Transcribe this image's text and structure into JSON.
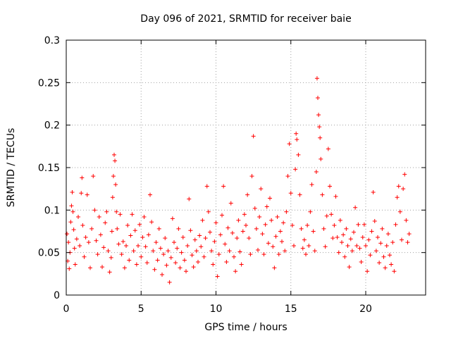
{
  "chart_data": {
    "type": "scatter",
    "title": "Day 096 of 2021, SRMTID for receiver baie",
    "xlabel": "GPS time / hours",
    "ylabel": "SRMTID / TECUs",
    "xlim": [
      0,
      24
    ],
    "ylim": [
      0,
      0.3
    ],
    "xticks": [
      0,
      5,
      10,
      15,
      20
    ],
    "xtick_labels": [
      "0",
      "5",
      "10",
      "15",
      "20"
    ],
    "yticks": [
      0,
      0.05,
      0.1,
      0.15,
      0.2,
      0.25,
      0.3
    ],
    "ytick_labels": [
      "0",
      "0.05",
      "0.1",
      "0.15",
      "0.2",
      "0.25",
      "0.3"
    ],
    "grid": true,
    "marker": "plus",
    "series": [
      {
        "name": "baie",
        "color": "#ff0000",
        "points": [
          [
            0.05,
            0.072
          ],
          [
            0.1,
            0.04
          ],
          [
            0.15,
            0.062
          ],
          [
            0.2,
            0.031
          ],
          [
            0.25,
            0.05
          ],
          [
            0.3,
            0.086
          ],
          [
            0.35,
            0.105
          ],
          [
            0.4,
            0.121
          ],
          [
            0.45,
            0.098
          ],
          [
            0.5,
            0.077
          ],
          [
            0.55,
            0.055
          ],
          [
            0.6,
            0.036
          ],
          [
            0.7,
            0.066
          ],
          [
            0.8,
            0.092
          ],
          [
            0.9,
            0.058
          ],
          [
            1.0,
            0.12
          ],
          [
            1.05,
            0.138
          ],
          [
            1.1,
            0.082
          ],
          [
            1.2,
            0.045
          ],
          [
            1.3,
            0.068
          ],
          [
            1.4,
            0.118
          ],
          [
            1.5,
            0.062
          ],
          [
            1.6,
            0.032
          ],
          [
            1.7,
            0.078
          ],
          [
            1.8,
            0.14
          ],
          [
            1.9,
            0.1
          ],
          [
            2.0,
            0.064
          ],
          [
            2.1,
            0.048
          ],
          [
            2.2,
            0.092
          ],
          [
            2.3,
            0.071
          ],
          [
            2.4,
            0.033
          ],
          [
            2.5,
            0.056
          ],
          [
            2.6,
            0.085
          ],
          [
            2.7,
            0.098
          ],
          [
            2.8,
            0.052
          ],
          [
            2.9,
            0.027
          ],
          [
            3.0,
            0.044
          ],
          [
            3.05,
            0.075
          ],
          [
            3.1,
            0.115
          ],
          [
            3.15,
            0.14
          ],
          [
            3.2,
            0.165
          ],
          [
            3.25,
            0.158
          ],
          [
            3.3,
            0.13
          ],
          [
            3.35,
            0.098
          ],
          [
            3.4,
            0.078
          ],
          [
            3.5,
            0.06
          ],
          [
            3.6,
            0.095
          ],
          [
            3.7,
            0.048
          ],
          [
            3.8,
            0.063
          ],
          [
            3.9,
            0.032
          ],
          [
            4.0,
            0.058
          ],
          [
            4.1,
            0.082
          ],
          [
            4.2,
            0.041
          ],
          [
            4.3,
            0.07
          ],
          [
            4.4,
            0.095
          ],
          [
            4.5,
            0.052
          ],
          [
            4.6,
            0.076
          ],
          [
            4.7,
            0.036
          ],
          [
            4.8,
            0.058
          ],
          [
            4.9,
            0.083
          ],
          [
            5.0,
            0.045
          ],
          [
            5.1,
            0.068
          ],
          [
            5.2,
            0.092
          ],
          [
            5.3,
            0.057
          ],
          [
            5.4,
            0.038
          ],
          [
            5.5,
            0.071
          ],
          [
            5.6,
            0.118
          ],
          [
            5.7,
            0.086
          ],
          [
            5.8,
            0.052
          ],
          [
            5.9,
            0.03
          ],
          [
            6.0,
            0.062
          ],
          [
            6.1,
            0.041
          ],
          [
            6.2,
            0.078
          ],
          [
            6.3,
            0.055
          ],
          [
            6.4,
            0.024
          ],
          [
            6.5,
            0.048
          ],
          [
            6.6,
            0.067
          ],
          [
            6.7,
            0.035
          ],
          [
            6.8,
            0.052
          ],
          [
            6.9,
            0.015
          ],
          [
            7.0,
            0.044
          ],
          [
            7.1,
            0.09
          ],
          [
            7.2,
            0.062
          ],
          [
            7.3,
            0.038
          ],
          [
            7.4,
            0.055
          ],
          [
            7.5,
            0.078
          ],
          [
            7.6,
            0.032
          ],
          [
            7.7,
            0.05
          ],
          [
            7.8,
            0.068
          ],
          [
            7.9,
            0.041
          ],
          [
            8.0,
            0.028
          ],
          [
            8.1,
            0.058
          ],
          [
            8.2,
            0.113
          ],
          [
            8.3,
            0.076
          ],
          [
            8.4,
            0.047
          ],
          [
            8.5,
            0.033
          ],
          [
            8.6,
            0.065
          ],
          [
            8.7,
            0.052
          ],
          [
            8.8,
            0.039
          ],
          [
            8.9,
            0.07
          ],
          [
            9.0,
            0.057
          ],
          [
            9.1,
            0.088
          ],
          [
            9.2,
            0.045
          ],
          [
            9.3,
            0.067
          ],
          [
            9.4,
            0.128
          ],
          [
            9.5,
            0.098
          ],
          [
            9.6,
            0.074
          ],
          [
            9.7,
            0.052
          ],
          [
            9.8,
            0.036
          ],
          [
            9.9,
            0.063
          ],
          [
            10.0,
            0.085
          ],
          [
            10.1,
            0.022
          ],
          [
            10.2,
            0.048
          ],
          [
            10.3,
            0.071
          ],
          [
            10.4,
            0.094
          ],
          [
            10.5,
            0.128
          ],
          [
            10.6,
            0.06
          ],
          [
            10.7,
            0.039
          ],
          [
            10.8,
            0.079
          ],
          [
            10.9,
            0.052
          ],
          [
            11.0,
            0.108
          ],
          [
            11.1,
            0.073
          ],
          [
            11.2,
            0.045
          ],
          [
            11.3,
            0.028
          ],
          [
            11.4,
            0.067
          ],
          [
            11.5,
            0.088
          ],
          [
            11.6,
            0.051
          ],
          [
            11.7,
            0.036
          ],
          [
            11.8,
            0.075
          ],
          [
            11.9,
            0.095
          ],
          [
            12.0,
            0.082
          ],
          [
            12.1,
            0.118
          ],
          [
            12.2,
            0.067
          ],
          [
            12.3,
            0.048
          ],
          [
            12.4,
            0.14
          ],
          [
            12.5,
            0.187
          ],
          [
            12.6,
            0.102
          ],
          [
            12.7,
            0.078
          ],
          [
            12.8,
            0.053
          ],
          [
            12.9,
            0.092
          ],
          [
            13.0,
            0.125
          ],
          [
            13.1,
            0.072
          ],
          [
            13.2,
            0.048
          ],
          [
            13.3,
            0.083
          ],
          [
            13.4,
            0.104
          ],
          [
            13.5,
            0.061
          ],
          [
            13.6,
            0.114
          ],
          [
            13.7,
            0.088
          ],
          [
            13.8,
            0.057
          ],
          [
            13.9,
            0.032
          ],
          [
            14.0,
            0.069
          ],
          [
            14.1,
            0.092
          ],
          [
            14.2,
            0.048
          ],
          [
            14.3,
            0.075
          ],
          [
            14.4,
            0.063
          ],
          [
            14.5,
            0.085
          ],
          [
            14.6,
            0.052
          ],
          [
            14.7,
            0.098
          ],
          [
            14.8,
            0.14
          ],
          [
            14.9,
            0.178
          ],
          [
            15.0,
            0.12
          ],
          [
            15.1,
            0.082
          ],
          [
            15.2,
            0.058
          ],
          [
            15.3,
            0.148
          ],
          [
            15.35,
            0.19
          ],
          [
            15.4,
            0.183
          ],
          [
            15.5,
            0.165
          ],
          [
            15.6,
            0.118
          ],
          [
            15.7,
            0.078
          ],
          [
            15.8,
            0.055
          ],
          [
            15.9,
            0.065
          ],
          [
            16.0,
            0.048
          ],
          [
            16.1,
            0.082
          ],
          [
            16.2,
            0.058
          ],
          [
            16.3,
            0.098
          ],
          [
            16.4,
            0.13
          ],
          [
            16.5,
            0.075
          ],
          [
            16.6,
            0.052
          ],
          [
            16.7,
            0.145
          ],
          [
            16.75,
            0.255
          ],
          [
            16.8,
            0.232
          ],
          [
            16.85,
            0.212
          ],
          [
            16.9,
            0.198
          ],
          [
            16.95,
            0.185
          ],
          [
            17.0,
            0.16
          ],
          [
            17.1,
            0.118
          ],
          [
            17.2,
            0.078
          ],
          [
            17.3,
            0.057
          ],
          [
            17.4,
            0.093
          ],
          [
            17.5,
            0.172
          ],
          [
            17.6,
            0.128
          ],
          [
            17.7,
            0.095
          ],
          [
            17.8,
            0.067
          ],
          [
            17.9,
            0.082
          ],
          [
            18.0,
            0.116
          ],
          [
            18.1,
            0.068
          ],
          [
            18.2,
            0.05
          ],
          [
            18.3,
            0.088
          ],
          [
            18.4,
            0.062
          ],
          [
            18.5,
            0.071
          ],
          [
            18.6,
            0.045
          ],
          [
            18.7,
            0.078
          ],
          [
            18.8,
            0.058
          ],
          [
            18.9,
            0.033
          ],
          [
            19.0,
            0.066
          ],
          [
            19.1,
            0.052
          ],
          [
            19.2,
            0.074
          ],
          [
            19.3,
            0.103
          ],
          [
            19.4,
            0.058
          ],
          [
            19.5,
            0.083
          ],
          [
            19.6,
            0.055
          ],
          [
            19.7,
            0.039
          ],
          [
            19.8,
            0.068
          ],
          [
            19.9,
            0.083
          ],
          [
            20.0,
            0.058
          ],
          [
            20.1,
            0.028
          ],
          [
            20.2,
            0.065
          ],
          [
            20.3,
            0.047
          ],
          [
            20.4,
            0.075
          ],
          [
            20.5,
            0.121
          ],
          [
            20.6,
            0.087
          ],
          [
            20.7,
            0.052
          ],
          [
            20.8,
            0.068
          ],
          [
            20.9,
            0.038
          ],
          [
            21.0,
            0.061
          ],
          [
            21.1,
            0.078
          ],
          [
            21.2,
            0.045
          ],
          [
            21.3,
            0.032
          ],
          [
            21.4,
            0.058
          ],
          [
            21.5,
            0.072
          ],
          [
            21.6,
            0.047
          ],
          [
            21.7,
            0.036
          ],
          [
            21.8,
            0.062
          ],
          [
            21.9,
            0.028
          ],
          [
            22.0,
            0.083
          ],
          [
            22.1,
            0.115
          ],
          [
            22.2,
            0.128
          ],
          [
            22.3,
            0.098
          ],
          [
            22.4,
            0.065
          ],
          [
            22.5,
            0.125
          ],
          [
            22.6,
            0.142
          ],
          [
            22.7,
            0.088
          ],
          [
            22.8,
            0.062
          ],
          [
            22.9,
            0.072
          ]
        ]
      }
    ]
  }
}
